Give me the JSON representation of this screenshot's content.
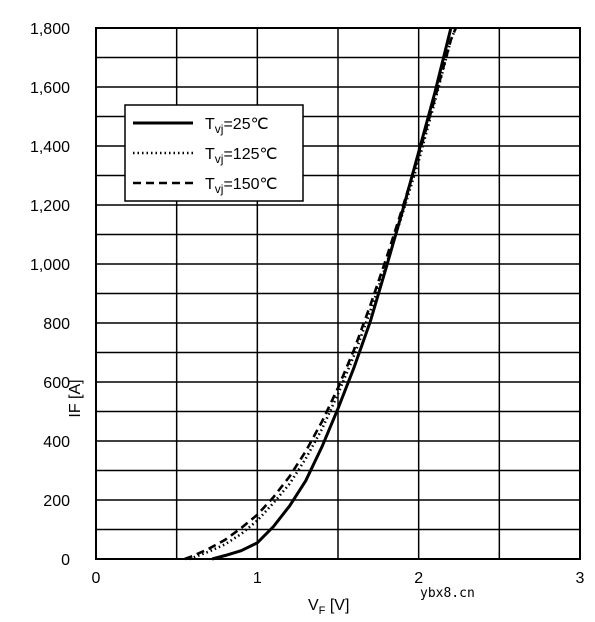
{
  "chart_data": {
    "type": "line",
    "title": "",
    "xlabel": {
      "main": "V",
      "sub": "F",
      "unit": " [V]"
    },
    "ylabel": "IF [A]",
    "xlim": [
      0,
      3
    ],
    "ylim": [
      0,
      1800
    ],
    "x_ticks": [
      0,
      1,
      2,
      3
    ],
    "x_tick_labels": [
      "0",
      "1",
      "2",
      "3"
    ],
    "y_ticks": [
      0,
      200,
      400,
      600,
      800,
      1000,
      1200,
      1400,
      1600,
      1800
    ],
    "y_tick_labels": [
      "0",
      "200",
      "400",
      "600",
      "800",
      "1,000",
      "1,200",
      "1,400",
      "1,600",
      "1,800"
    ],
    "x_minor_step": 0.5,
    "y_minor_step": 100,
    "grid": true,
    "legend_position": "top-left",
    "series": [
      {
        "name": {
          "main": "T",
          "sub": "vj",
          "rest": "=25℃"
        },
        "style": "solid",
        "points": [
          [
            0.72,
            0
          ],
          [
            0.8,
            12
          ],
          [
            0.9,
            28
          ],
          [
            1.0,
            55
          ],
          [
            1.1,
            110
          ],
          [
            1.2,
            180
          ],
          [
            1.3,
            265
          ],
          [
            1.4,
            380
          ],
          [
            1.5,
            510
          ],
          [
            1.6,
            650
          ],
          [
            1.7,
            805
          ],
          [
            1.8,
            990
          ],
          [
            1.9,
            1180
          ],
          [
            2.0,
            1380
          ],
          [
            2.1,
            1580
          ],
          [
            2.2,
            1800
          ]
        ]
      },
      {
        "name": {
          "main": "T",
          "sub": "vj",
          "rest": "=125℃"
        },
        "style": "dotted",
        "points": [
          [
            0.58,
            0
          ],
          [
            0.7,
            25
          ],
          [
            0.8,
            50
          ],
          [
            0.9,
            85
          ],
          [
            1.0,
            130
          ],
          [
            1.1,
            190
          ],
          [
            1.2,
            255
          ],
          [
            1.3,
            340
          ],
          [
            1.4,
            440
          ],
          [
            1.5,
            560
          ],
          [
            1.6,
            690
          ],
          [
            1.7,
            840
          ],
          [
            1.8,
            1000
          ],
          [
            1.9,
            1170
          ],
          [
            2.0,
            1350
          ],
          [
            2.1,
            1550
          ],
          [
            2.2,
            1760
          ],
          [
            2.23,
            1800
          ]
        ]
      },
      {
        "name": {
          "main": "T",
          "sub": "vj",
          "rest": "=150℃"
        },
        "style": "dashed",
        "points": [
          [
            0.55,
            0
          ],
          [
            0.6,
            10
          ],
          [
            0.7,
            35
          ],
          [
            0.8,
            65
          ],
          [
            0.9,
            105
          ],
          [
            1.0,
            150
          ],
          [
            1.1,
            210
          ],
          [
            1.2,
            280
          ],
          [
            1.3,
            365
          ],
          [
            1.4,
            465
          ],
          [
            1.5,
            580
          ],
          [
            1.6,
            710
          ],
          [
            1.7,
            860
          ],
          [
            1.8,
            1020
          ],
          [
            1.9,
            1190
          ],
          [
            2.0,
            1370
          ],
          [
            2.1,
            1560
          ],
          [
            2.2,
            1760
          ],
          [
            2.23,
            1800
          ]
        ]
      }
    ]
  },
  "watermark": "ybx8.cn"
}
